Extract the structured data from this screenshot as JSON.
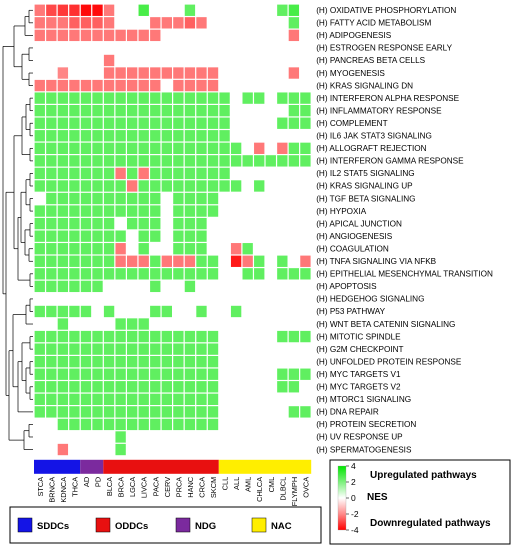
{
  "chart_data": {
    "type": "heatmap",
    "rows": [
      "(H) OXIDATIVE PHOSPHORYLATION",
      "(H) FATTY ACID METABOLISM",
      "(H) ADIPOGENESIS",
      "(H) ESTROGEN RESPONSE EARLY",
      "(H) PANCREAS BETA CELLS",
      "(H) MYOGENESIS",
      "(H) KRAS SIGNALING DN",
      "(H) INTERFERON ALPHA RESPONSE",
      "(H) INFLAMMATORY RESPONSE",
      "(H) COMPLEMENT",
      "(H) IL6 JAK STAT3 SIGNALING",
      "(H) ALLOGRAFT REJECTION",
      "(H) INTERFERON GAMMA RESPONSE",
      "(H) IL2 STAT5 SIGNALING",
      "(H) KRAS SIGNALING UP",
      "(H) TGF BETA SIGNALING",
      "(H) HYPOXIA",
      "(H) APICAL JUNCTION",
      "(H) ANGIOGENESIS",
      "(H) COAGULATION",
      "(H) TNFA SIGNALING VIA NFKB",
      "(H) EPITHELIAL MESENCHYMAL TRANSITION",
      "(H) APOPTOSIS",
      "(H) HEDGEHOG SIGNALING",
      "(H) P53 PATHWAY",
      "(H) WNT BETA CATENIN SIGNALING",
      "(H) MITOTIC SPINDLE",
      "(H) G2M CHECKPOINT",
      "(H) UNFOLDED PROTEIN RESPONSE",
      "(H) MYC TARGETS V1",
      "(H) MYC TARGETS V2",
      "(H) MTORC1 SIGNALING",
      "(H) DNA REPAIR",
      "(H) PROTEIN SECRETION",
      "(H) UV RESPONSE UP",
      "(H) SPERMATOGENESIS"
    ],
    "columns": [
      "STCA",
      "BRNCA",
      "KDNCA",
      "THCA",
      "AD",
      "PD",
      "BLCA",
      "BRCA",
      "LGCA",
      "LIVCA",
      "PACA",
      "CERV",
      "PRCA",
      "HANC",
      "CRCA",
      "SKCM",
      "CLL",
      "ALL",
      "AML",
      "CHLCA",
      "CML",
      "DLBCL",
      "FLYMPH",
      "OVCA"
    ],
    "column_groups": [
      {
        "name": "SDDCs",
        "color": "#1414e6",
        "columns": [
          "STCA",
          "BRNCA",
          "KDNCA",
          "THCA"
        ]
      },
      {
        "name": "NDG",
        "color": "#7b2a9e",
        "columns": [
          "AD",
          "PD"
        ]
      },
      {
        "name": "ODDCs",
        "color": "#e81010",
        "columns": [
          "BLCA",
          "BRCA",
          "LGCA",
          "LIVCA",
          "PACA",
          "CERV",
          "PRCA",
          "HANC",
          "CRCA",
          "SKCM"
        ]
      },
      {
        "name": "NAC",
        "color": "#ffee00",
        "columns": [
          "CLL",
          "ALL",
          "AML",
          "CHLCA",
          "CML",
          "DLBCL",
          "FLYMPH",
          "OVCA"
        ]
      }
    ],
    "legend_groups": [
      {
        "name": "SDDCs",
        "color": "#1414e6"
      },
      {
        "name": "ODDCs",
        "color": "#e81010"
      },
      {
        "name": "NDG",
        "color": "#7b2a9e"
      },
      {
        "name": "NAC",
        "color": "#ffee00"
      }
    ],
    "color_scale": {
      "label": "NES",
      "ticks": [
        4,
        2,
        0,
        -2,
        -4
      ],
      "min": -4,
      "max": 4,
      "upper_label": "Upregulated pathways",
      "lower_label": "Downregulated pathways",
      "high_color": "#00e600",
      "mid_color": "#ffffff",
      "low_color": "#ff0000"
    },
    "values": [
      [
        -1.5,
        -2.5,
        -2.8,
        -3.0,
        -3.8,
        -3.8,
        -1.5,
        0,
        0,
        2.5,
        0,
        0,
        0,
        2,
        0,
        0,
        0,
        0,
        0,
        0,
        0,
        2,
        2.5,
        0
      ],
      [
        -1.5,
        -1.5,
        -1.5,
        -2,
        -2,
        -2,
        -1.5,
        0,
        0,
        0,
        -1.5,
        -1.5,
        -1.5,
        -2,
        -1.5,
        0,
        0,
        0,
        0,
        0,
        0,
        0,
        2,
        0
      ],
      [
        -1.5,
        -1.5,
        -1.5,
        -1.5,
        -1.5,
        -1.5,
        -1.5,
        -1.5,
        -1.5,
        -1.5,
        -1.5,
        0,
        0,
        0,
        0,
        0,
        0,
        0,
        0,
        0,
        0,
        0,
        -1.5,
        0
      ],
      [
        0,
        0,
        0,
        0,
        0,
        0,
        0,
        0,
        0,
        0,
        0,
        0,
        0,
        0,
        0,
        0,
        0,
        0,
        0,
        0,
        0,
        0,
        0,
        0
      ],
      [
        0,
        0,
        0,
        0,
        0,
        0,
        -1.5,
        0,
        0,
        0,
        0,
        0,
        0,
        0,
        0,
        0,
        0,
        0,
        0,
        0,
        0,
        0,
        0,
        0
      ],
      [
        0,
        0,
        -1.2,
        0,
        0,
        0,
        -1.5,
        -1.5,
        -1.5,
        -1.5,
        -1.5,
        -1.5,
        -1.5,
        -1.5,
        -1.5,
        -1.5,
        0,
        0,
        0,
        0,
        0,
        0,
        -1.5,
        0
      ],
      [
        -1.5,
        -1.5,
        -1.5,
        -1.5,
        -1.5,
        -1.5,
        -1.5,
        -1.5,
        -1.5,
        -1.5,
        -1.5,
        0,
        -1.5,
        -1.5,
        -1.5,
        -1.5,
        0,
        0,
        0,
        0,
        0,
        0,
        0,
        0
      ],
      [
        2,
        2,
        2,
        2,
        2,
        2,
        2,
        2,
        2,
        2,
        2,
        2,
        2,
        2,
        2,
        2,
        2,
        0,
        2,
        2,
        0,
        2,
        2,
        2
      ],
      [
        2,
        2,
        2,
        2,
        2,
        2,
        2,
        2,
        2,
        2,
        2,
        2,
        2,
        2,
        2,
        2,
        2,
        0,
        0,
        0,
        0,
        0,
        2,
        2
      ],
      [
        2,
        2,
        2,
        2,
        2,
        2,
        2,
        2,
        2,
        2,
        2,
        2,
        2,
        2,
        2,
        2,
        2,
        0,
        0,
        0,
        0,
        2,
        2,
        2
      ],
      [
        2,
        2,
        2,
        2,
        2,
        2,
        2,
        2,
        2,
        2,
        2,
        2,
        2,
        2,
        2,
        2,
        2,
        0,
        0,
        0,
        0,
        0,
        0,
        0
      ],
      [
        2,
        2,
        2,
        2,
        2,
        2,
        2,
        2,
        2,
        2,
        2,
        2,
        2,
        2,
        2,
        2,
        2,
        2,
        0,
        -1.5,
        0,
        -1.5,
        2,
        2
      ],
      [
        2,
        2,
        2,
        2,
        2,
        2,
        2,
        2,
        2,
        2,
        2,
        2,
        2,
        2,
        2,
        2,
        2,
        2,
        2,
        2,
        2,
        2,
        2,
        2
      ],
      [
        2,
        2,
        2,
        2,
        2,
        2,
        2,
        -1.5,
        2,
        -1.5,
        2,
        2,
        2,
        2,
        2,
        2,
        2,
        0,
        0,
        0,
        0,
        0,
        0,
        0
      ],
      [
        2,
        2,
        2,
        2,
        2,
        2,
        2,
        2,
        -1.5,
        2,
        2,
        2,
        2,
        2,
        2,
        2,
        2,
        2,
        0,
        2,
        0,
        0,
        0,
        0
      ],
      [
        0,
        2,
        2,
        2,
        2,
        2,
        2,
        2,
        2,
        2,
        2,
        0,
        2,
        2,
        2,
        2,
        0,
        0,
        0,
        0,
        0,
        0,
        0,
        0
      ],
      [
        2,
        2,
        2,
        2,
        2,
        2,
        2,
        2,
        2,
        2,
        2,
        0,
        2,
        2,
        2,
        2,
        0,
        0,
        0,
        0,
        0,
        0,
        0,
        0
      ],
      [
        2,
        2,
        2,
        2,
        2,
        2,
        2,
        0,
        2,
        2,
        2,
        0,
        2,
        2,
        2,
        0,
        0,
        0,
        0,
        0,
        0,
        0,
        0,
        0
      ],
      [
        2,
        2,
        2,
        2,
        2,
        2,
        2,
        2,
        0,
        2,
        2,
        0,
        2,
        2,
        2,
        0,
        0,
        0,
        0,
        0,
        0,
        0,
        0,
        0
      ],
      [
        2,
        2,
        2,
        2,
        2,
        2,
        2,
        -1.5,
        0,
        2,
        0,
        0,
        2,
        2,
        2,
        0,
        0,
        -1.5,
        2,
        0,
        0,
        0,
        0,
        0
      ],
      [
        2,
        2,
        2,
        2,
        2,
        2,
        2,
        -1.5,
        -1.5,
        -1.5,
        2,
        -1.5,
        -1.5,
        -1.5,
        2,
        2,
        0,
        -3.5,
        -1.5,
        2,
        0,
        2,
        0,
        -1.5
      ],
      [
        2,
        2,
        2,
        2,
        2,
        2,
        2,
        2,
        2,
        2,
        2,
        2,
        2,
        2,
        2,
        2,
        0,
        0,
        2,
        2,
        0,
        2,
        2,
        2
      ],
      [
        2,
        2,
        2,
        2,
        2,
        2,
        0,
        0,
        0,
        0,
        2,
        0,
        0,
        2,
        0,
        0,
        0,
        0,
        0,
        0,
        0,
        0,
        0,
        0
      ],
      [
        0,
        0,
        0,
        0,
        0,
        0,
        0,
        0,
        0,
        0,
        0,
        0,
        0,
        0,
        0,
        0,
        0,
        0,
        0,
        0,
        0,
        0,
        0,
        0
      ],
      [
        2,
        2,
        2,
        2,
        2,
        0,
        2,
        0,
        0,
        0,
        2,
        2,
        0,
        0,
        2,
        0,
        0,
        2,
        0,
        0,
        0,
        0,
        0,
        0
      ],
      [
        0,
        0,
        2,
        0,
        0,
        0,
        0,
        2,
        2,
        2,
        0,
        0,
        0,
        0,
        0,
        0,
        0,
        0,
        0,
        0,
        0,
        0,
        0,
        0
      ],
      [
        2,
        2,
        2,
        2,
        2,
        2,
        2,
        2,
        2,
        2,
        2,
        2,
        2,
        2,
        2,
        2,
        0,
        0,
        0,
        0,
        0,
        2,
        2,
        2
      ],
      [
        2,
        2,
        2,
        2,
        2,
        2,
        2,
        2,
        2,
        2,
        2,
        2,
        2,
        2,
        2,
        2,
        0,
        0,
        0,
        0,
        0,
        0,
        0,
        0
      ],
      [
        2,
        2,
        2,
        2,
        2,
        2,
        2,
        2,
        2,
        2,
        2,
        2,
        2,
        2,
        2,
        2,
        0,
        0,
        0,
        0,
        0,
        0,
        0,
        0
      ],
      [
        2,
        2,
        2,
        2,
        2,
        2,
        2,
        2,
        2,
        2,
        2,
        2,
        2,
        2,
        2,
        2,
        0,
        0,
        0,
        0,
        0,
        2,
        2,
        2
      ],
      [
        2,
        2,
        2,
        2,
        2,
        2,
        2,
        2,
        2,
        2,
        2,
        2,
        2,
        2,
        2,
        2,
        0,
        0,
        0,
        0,
        0,
        2,
        2,
        0
      ],
      [
        2,
        2,
        2,
        2,
        2,
        2,
        2,
        2,
        2,
        2,
        2,
        2,
        2,
        2,
        2,
        2,
        0,
        0,
        0,
        0,
        0,
        0,
        0,
        0
      ],
      [
        2,
        2,
        2,
        2,
        2,
        2,
        2,
        2,
        2,
        2,
        2,
        2,
        2,
        2,
        2,
        2,
        0,
        0,
        0,
        0,
        0,
        0,
        2,
        2
      ],
      [
        0,
        0,
        2,
        2,
        2,
        2,
        2,
        2,
        2,
        2,
        2,
        2,
        2,
        2,
        2,
        2,
        0,
        0,
        0,
        0,
        0,
        0,
        0,
        0
      ],
      [
        0,
        0,
        0,
        0,
        0,
        0,
        0,
        2,
        0,
        0,
        0,
        0,
        0,
        0,
        0,
        0,
        0,
        0,
        0,
        0,
        0,
        0,
        0,
        0
      ],
      [
        0,
        0,
        -1.5,
        0,
        0,
        0,
        0,
        2,
        0,
        0,
        0,
        0,
        0,
        0,
        0,
        0,
        0,
        0,
        0,
        0,
        0,
        0,
        0,
        0
      ]
    ]
  }
}
